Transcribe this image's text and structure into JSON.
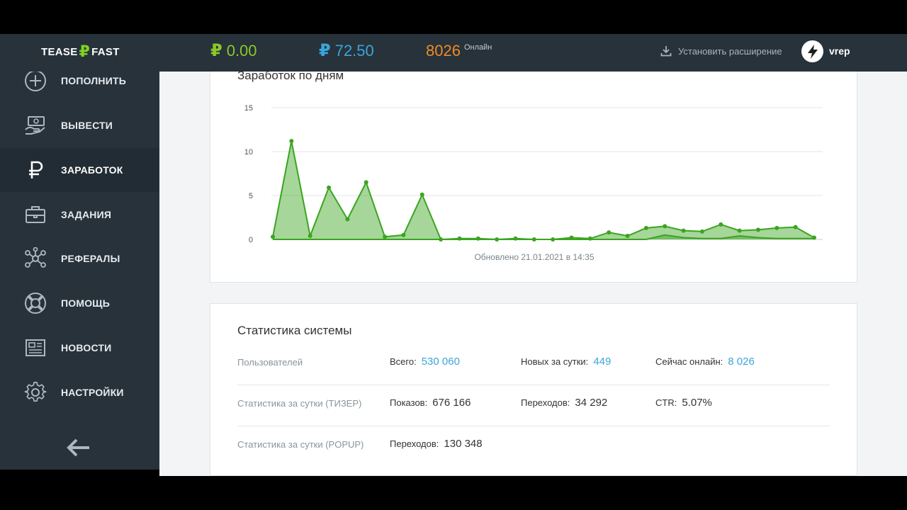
{
  "header": {
    "logo_left": "TEASE",
    "logo_symbol": "₽",
    "logo_right": "FAST",
    "balance_symbol": "₽",
    "balance_green": "0.00",
    "balance_blue": "72.50",
    "online_count": "8026",
    "online_label": "Онлайн",
    "install_extension": "Установить расширение",
    "username": "vrep",
    "colors": {
      "green": "#8bc926",
      "blue": "#3aa5d9",
      "orange": "#f08a24",
      "bar": "#27323b"
    }
  },
  "sidebar": {
    "items": [
      {
        "label": "ПОПОЛНИТЬ",
        "icon": "plus-circle-icon",
        "active": false
      },
      {
        "label": "ВЫВЕСТИ",
        "icon": "cash-hand-icon",
        "active": false
      },
      {
        "label": "ЗАРАБОТОК",
        "icon": "ruble-icon",
        "active": true
      },
      {
        "label": "ЗАДАНИЯ",
        "icon": "briefcase-icon",
        "active": false
      },
      {
        "label": "РЕФЕРАЛЫ",
        "icon": "network-icon",
        "active": false
      },
      {
        "label": "ПОМОЩЬ",
        "icon": "lifebuoy-icon",
        "active": false
      },
      {
        "label": "НОВОСТИ",
        "icon": "newspaper-icon",
        "active": false
      },
      {
        "label": "НАСТРОЙКИ",
        "icon": "gear-icon",
        "active": false
      }
    ],
    "collapse_icon": "arrow-left-icon"
  },
  "chart_card": {
    "title": "Заработок по дням",
    "updated": "Обновлено 21.01.2021 в 14:35"
  },
  "chart_data": {
    "type": "area",
    "title": "Заработок по дням",
    "xlabel": "",
    "ylabel": "",
    "ylim": [
      0,
      15
    ],
    "yticks": [
      "15",
      "10",
      "5",
      "0"
    ],
    "grid": true,
    "x": [
      1,
      2,
      3,
      4,
      5,
      6,
      7,
      8,
      9,
      10,
      11,
      12,
      13,
      14,
      15,
      16,
      17,
      18,
      19,
      20,
      21,
      22,
      23,
      24,
      25,
      26,
      27,
      28,
      29,
      30
    ],
    "series": [
      {
        "color": "#3aa51f",
        "values": [
          0.3,
          11.2,
          0.4,
          5.9,
          2.3,
          6.5,
          0.3,
          0.5,
          5.1,
          0.0,
          0.1,
          0.1,
          0.0,
          0.1,
          0.0,
          0.0,
          0.2,
          0.1,
          0.8,
          0.4,
          1.3,
          1.5,
          1.0,
          0.9,
          1.7,
          1.0,
          1.1,
          1.3,
          1.4,
          0.2
        ]
      },
      {
        "color": "#3aa51f",
        "values": [
          0,
          0,
          0,
          0,
          0,
          0,
          0,
          0,
          0,
          0,
          0,
          0,
          0,
          0,
          0,
          0,
          0,
          0,
          0,
          0,
          0,
          0.5,
          0.2,
          0.1,
          0.1,
          0.4,
          0.2,
          0.1,
          0.1,
          0.1
        ]
      }
    ]
  },
  "stats_card": {
    "title": "Статистика системы",
    "rows": [
      {
        "label": "Пользователей",
        "cells": [
          {
            "key": "Всего:",
            "value": "530 060"
          },
          {
            "key": "Новых за сутки:",
            "value": "449"
          },
          {
            "key": "Сейчас онлайн:",
            "value": "8 026"
          }
        ]
      },
      {
        "label": "Статистика за сутки (ТИЗЕР)",
        "cells": [
          {
            "key": "Показов:",
            "value": "676 166"
          },
          {
            "key": "Переходов:",
            "value": "34 292"
          },
          {
            "key": "CTR:",
            "value": "5.07%"
          }
        ]
      },
      {
        "label": "Статистика за сутки (POPUP)",
        "cells": [
          {
            "key": "Переходов:",
            "value": "130 348"
          }
        ]
      }
    ]
  }
}
